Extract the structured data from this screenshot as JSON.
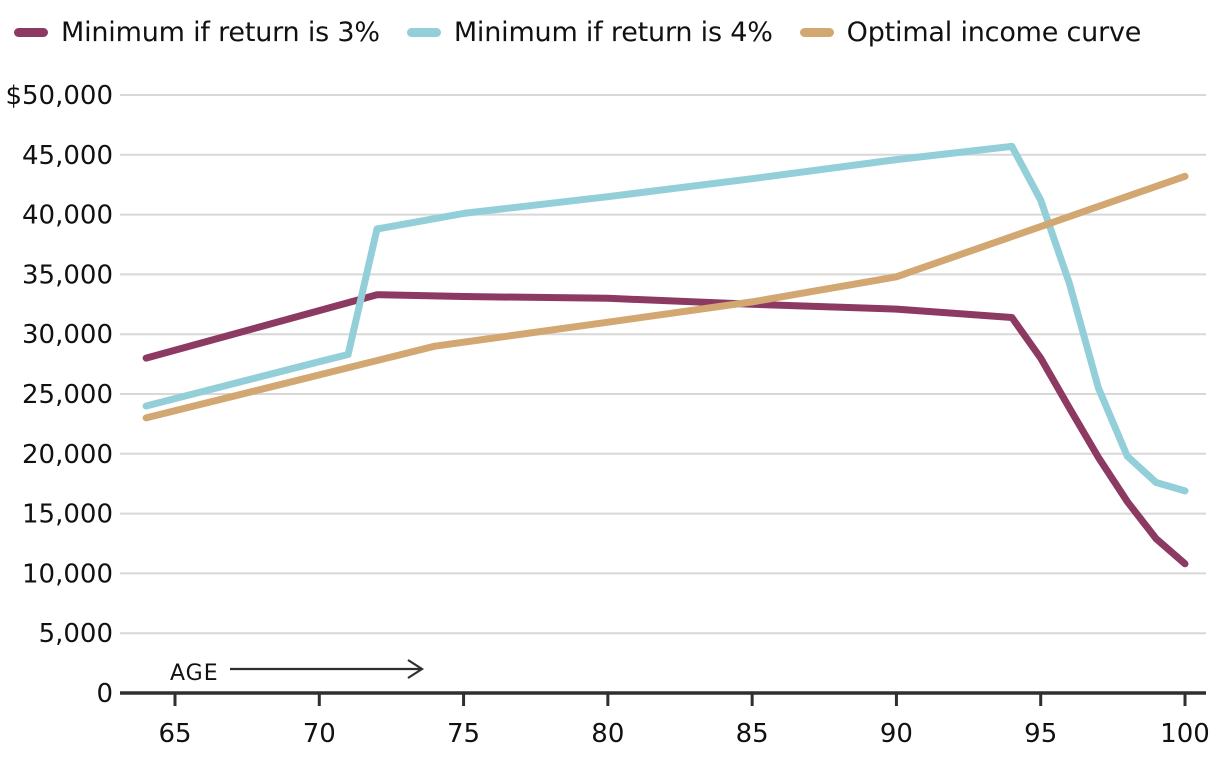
{
  "colors": {
    "background": "#ffffff",
    "gridline": "#d8d8d8",
    "axis": "#2f2f2f",
    "text": "#111111"
  },
  "chart_data": {
    "type": "line",
    "title": "",
    "xlabel": "AGE",
    "ylabel": "",
    "xlim": [
      64,
      100
    ],
    "ylim": [
      0,
      50000
    ],
    "grid": "horizontal",
    "legend_position": "top-left",
    "x_ticks": [
      65,
      70,
      75,
      80,
      85,
      90,
      95,
      100
    ],
    "x_tick_labels": [
      "65",
      "70",
      "75",
      "80",
      "85",
      "90",
      "95",
      "100"
    ],
    "y_ticks": [
      0,
      5000,
      10000,
      15000,
      20000,
      25000,
      30000,
      35000,
      40000,
      45000,
      50000
    ],
    "y_tick_labels": [
      "0",
      "5,000",
      "10,000",
      "15,000",
      "20,000",
      "25,000",
      "30,000",
      "35,000",
      "40,000",
      "45,000",
      "$50,000"
    ],
    "annotation": {
      "label": "AGE",
      "arrow_direction": "right"
    },
    "series": [
      {
        "name": "Minimum if return is 3%",
        "color": "#8d3a63",
        "points": [
          [
            64,
            28000
          ],
          [
            72,
            33300
          ],
          [
            75,
            33150
          ],
          [
            80,
            33000
          ],
          [
            85,
            32500
          ],
          [
            90,
            32100
          ],
          [
            94,
            31400
          ],
          [
            95,
            28000
          ],
          [
            96,
            23800
          ],
          [
            97,
            19700
          ],
          [
            98,
            16000
          ],
          [
            99,
            12900
          ],
          [
            100,
            10800
          ]
        ]
      },
      {
        "name": "Minimum if return is 4%",
        "color": "#93cfd9",
        "points": [
          [
            64,
            24000
          ],
          [
            70,
            27700
          ],
          [
            71,
            28300
          ],
          [
            72,
            38800
          ],
          [
            75,
            40100
          ],
          [
            80,
            41500
          ],
          [
            85,
            43000
          ],
          [
            90,
            44600
          ],
          [
            94,
            45700
          ],
          [
            95,
            41200
          ],
          [
            96,
            34200
          ],
          [
            97,
            25500
          ],
          [
            98,
            19800
          ],
          [
            99,
            17600
          ],
          [
            100,
            16900
          ]
        ]
      },
      {
        "name": "Optimal income curve",
        "color": "#d3a771",
        "points": [
          [
            64,
            23000
          ],
          [
            70,
            26600
          ],
          [
            74,
            29000
          ],
          [
            80,
            31000
          ],
          [
            85,
            32700
          ],
          [
            90,
            34800
          ],
          [
            95,
            39000
          ],
          [
            100,
            43200
          ]
        ]
      }
    ]
  }
}
